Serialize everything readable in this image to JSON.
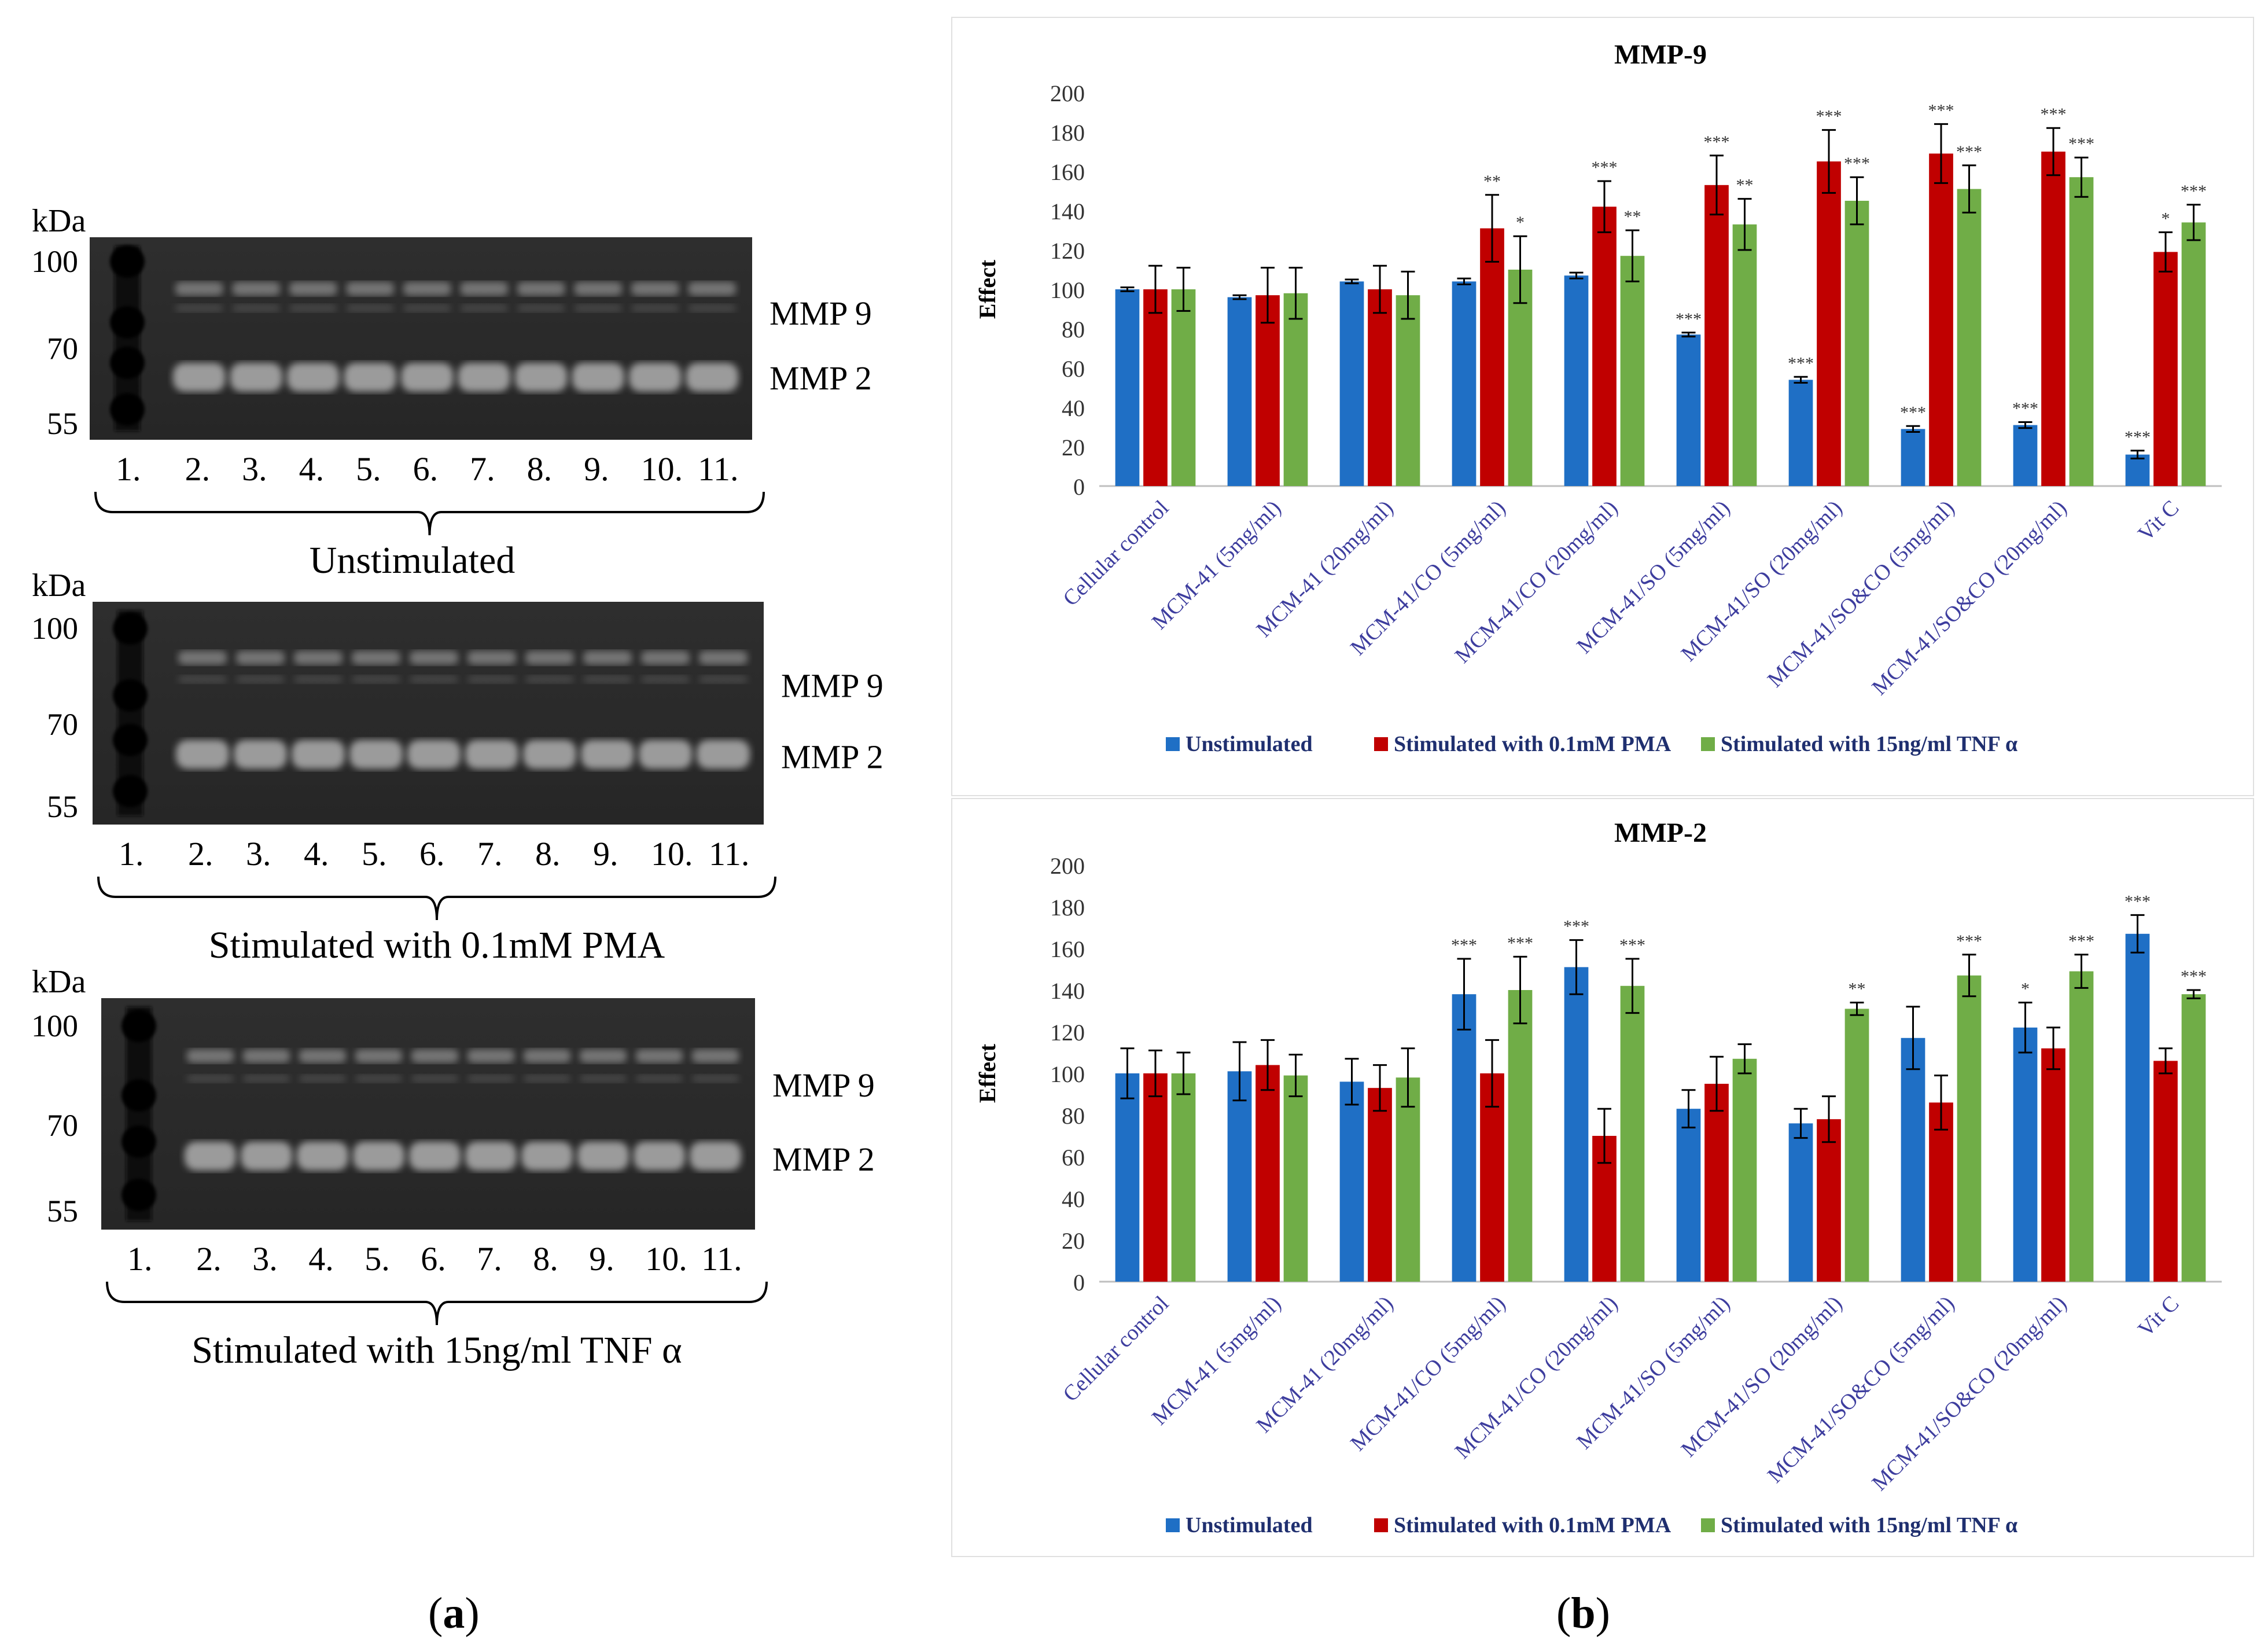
{
  "panel_labels": {
    "a": "a",
    "b": "b"
  },
  "gels": [
    {
      "condition": "Unstimulated",
      "unit": "kDa",
      "markers": [
        "100",
        "70",
        "55"
      ],
      "band_labels": [
        "MMP 9",
        "MMP 2"
      ],
      "lanes": [
        "1.",
        "2.",
        "3.",
        "4.",
        "5.",
        "6.",
        "7.",
        "8.",
        "9.",
        "10.",
        "11."
      ]
    },
    {
      "condition": "Stimulated  with  0.1mM PMA",
      "unit": "kDa",
      "markers": [
        "100",
        "70",
        "55"
      ],
      "band_labels": [
        "MMP 9",
        "MMP 2"
      ],
      "lanes": [
        "1.",
        "2.",
        "3.",
        "4.",
        "5.",
        "6.",
        "7.",
        "8.",
        "9.",
        "10.",
        "11."
      ]
    },
    {
      "condition": "Stimulated  with  15ng/ml TNF α",
      "unit": "kDa",
      "markers": [
        "100",
        "70",
        "55"
      ],
      "band_labels": [
        "MMP 9",
        "MMP 2"
      ],
      "lanes": [
        "1.",
        "2.",
        "3.",
        "4.",
        "5.",
        "6.",
        "7.",
        "8.",
        "9.",
        "10.",
        "11."
      ]
    }
  ],
  "colors": {
    "unstimulated": "#1f6fc5",
    "pma": "#c00000",
    "tnf": "#70ad47",
    "tick": "#3d3d9e"
  },
  "chart_data": [
    {
      "type": "bar",
      "title": "MMP-9",
      "ylabel": "Effect",
      "xlabel": "",
      "ylim": [
        0,
        200
      ],
      "yticks": [
        0,
        20,
        40,
        60,
        80,
        100,
        120,
        140,
        160,
        180,
        200
      ],
      "legend": "bottom",
      "categories": [
        "Cellular control",
        "MCM-41 (5mg/ml)",
        "MCM-41 (20mg/ml)",
        "MCM-41/CO (5mg/ml)",
        "MCM-41/CO (20mg/ml)",
        "MCM-41/SO (5mg/ml)",
        "MCM-41/SO (20mg/ml)",
        "MCM-41/SO&CO (5mg/ml)",
        "MCM-41/SO&CO (20mg/ml)",
        "Vit C"
      ],
      "series": [
        {
          "name": "Unstimulated",
          "values": [
            100,
            96,
            104,
            104,
            107,
            77,
            54,
            29,
            31,
            16
          ],
          "errors": [
            1,
            1,
            1,
            1.5,
            1.5,
            1,
            1.5,
            1.5,
            1.5,
            2
          ],
          "significance": [
            "",
            "",
            "",
            "",
            "",
            "***",
            "***",
            "***",
            "***",
            "***"
          ]
        },
        {
          "name": "Stimulated with 0.1mM PMA",
          "values": [
            100,
            97,
            100,
            131,
            142,
            153,
            165,
            169,
            170,
            119
          ],
          "errors": [
            12,
            14,
            12,
            17,
            13,
            15,
            16,
            15,
            12,
            10
          ],
          "significance": [
            "",
            "",
            "",
            "**",
            "***",
            "***",
            "***",
            "***",
            "***",
            "*"
          ]
        },
        {
          "name": "Stimulated with 15ng/ml TNF α",
          "values": [
            100,
            98,
            97,
            110,
            117,
            133,
            145,
            151,
            157,
            134
          ],
          "errors": [
            11,
            13,
            12,
            17,
            13,
            13,
            12,
            12,
            10,
            9
          ],
          "significance": [
            "",
            "",
            "",
            "*",
            "**",
            "**",
            "***",
            "***",
            "***",
            "***"
          ]
        }
      ]
    },
    {
      "type": "bar",
      "title": "MMP-2",
      "ylabel": "Effect",
      "xlabel": "",
      "ylim": [
        0,
        200
      ],
      "yticks": [
        0,
        20,
        40,
        60,
        80,
        100,
        120,
        140,
        160,
        180,
        200
      ],
      "legend": "bottom",
      "categories": [
        "Cellular control",
        "MCM-41 (5mg/ml)",
        "MCM-41 (20mg/ml)",
        "MCM-41/CO (5mg/ml)",
        "MCM-41/CO (20mg/ml)",
        "MCM-41/SO (5mg/ml)",
        "MCM-41/SO (20mg/ml)",
        "MCM-41/SO&CO (5mg/ml)",
        "MCM-41/SO&CO (20mg/ml)",
        "Vit C"
      ],
      "series": [
        {
          "name": "Unstimulated",
          "values": [
            100,
            101,
            96,
            138,
            151,
            83,
            76,
            117,
            122,
            167
          ],
          "errors": [
            12,
            14,
            11,
            17,
            13,
            9,
            7,
            15,
            12,
            9
          ],
          "significance": [
            "",
            "",
            "",
            "***",
            "***",
            "",
            "",
            "",
            "*",
            "***"
          ]
        },
        {
          "name": "Stimulated with 0.1mM PMA",
          "values": [
            100,
            104,
            93,
            100,
            70,
            95,
            78,
            86,
            112,
            106
          ],
          "errors": [
            11,
            12,
            11,
            16,
            13,
            13,
            11,
            13,
            10,
            6
          ],
          "significance": [
            "",
            "",
            "",
            "",
            "",
            "",
            "",
            "",
            "",
            ""
          ]
        },
        {
          "name": "Stimulated with 15ng/ml TNF α",
          "values": [
            100,
            99,
            98,
            140,
            142,
            107,
            131,
            147,
            149,
            138
          ],
          "errors": [
            10,
            10,
            14,
            16,
            13,
            7,
            3,
            10,
            8,
            2
          ],
          "significance": [
            "",
            "",
            "",
            "***",
            "***",
            "",
            "**",
            "***",
            "***",
            "***"
          ]
        }
      ]
    }
  ]
}
